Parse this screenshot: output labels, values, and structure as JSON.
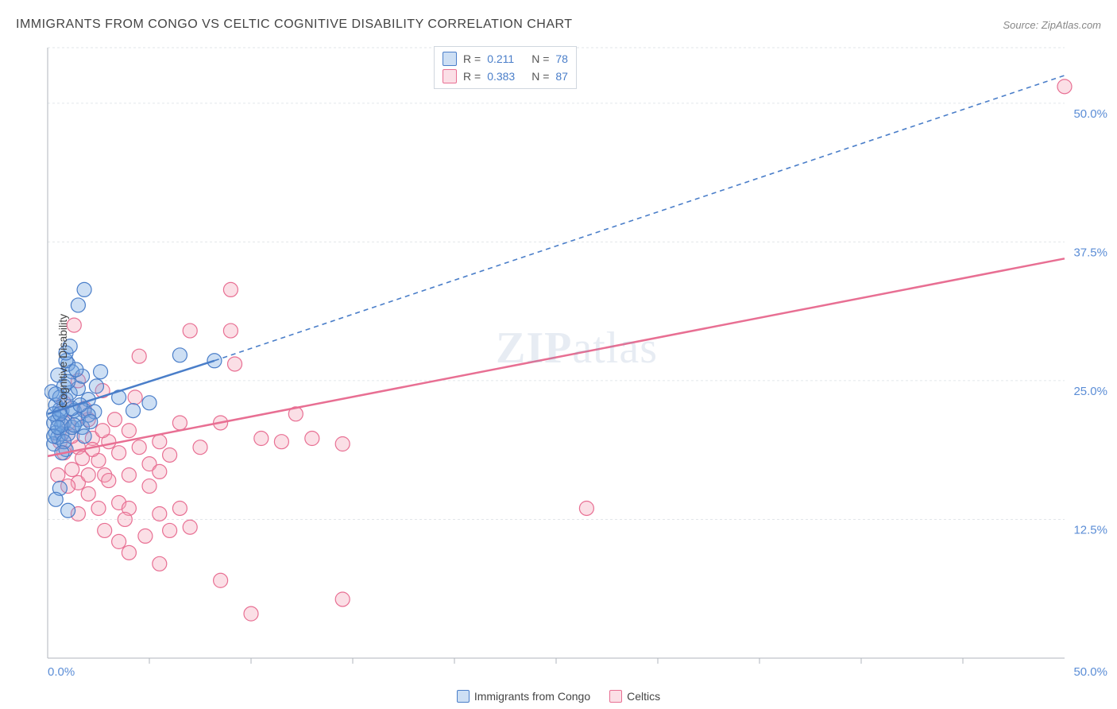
{
  "title": "IMMIGRANTS FROM CONGO VS CELTIC COGNITIVE DISABILITY CORRELATION CHART",
  "source": "Source: ZipAtlas.com",
  "ylabel": "Cognitive Disability",
  "watermark_a": "ZIP",
  "watermark_b": "atlas",
  "legend": {
    "series_a_label": "Immigrants from Congo",
    "series_b_label": "Celtics"
  },
  "stats": {
    "series_a": {
      "r_label": "R =",
      "r": "0.211",
      "n_label": "N =",
      "n": "78"
    },
    "series_b": {
      "r_label": "R =",
      "r": "0.383",
      "n_label": "N =",
      "n": "87"
    }
  },
  "chart": {
    "type": "scatter",
    "xlim": [
      0,
      50
    ],
    "ylim": [
      0,
      55
    ],
    "x_tick_major": [
      0,
      50
    ],
    "x_tick_minor": [
      5,
      10,
      15,
      20,
      25,
      30,
      35,
      40,
      45
    ],
    "y_gridlines": [
      12.5,
      25.0,
      37.5,
      50.0,
      55.0
    ],
    "y_tick_labels": [
      "12.5%",
      "25.0%",
      "37.5%",
      "50.0%"
    ],
    "x_tick_labels": [
      "0.0%",
      "50.0%"
    ],
    "background_color": "#ffffff",
    "grid_color": "#e2e6ea",
    "axis_color": "#b0b6bc",
    "marker_radius": 9,
    "marker_opacity": 0.45,
    "series_a": {
      "color": "#6fa3e0",
      "stroke": "#4a7ec9",
      "fill": "rgba(111,163,224,0.35)",
      "trend": {
        "x1": 0,
        "y1": 22.0,
        "x2": 8.2,
        "y2": 26.8,
        "solid": true,
        "dash_x2": 50,
        "dash_y2": 52.5
      },
      "points": [
        [
          1.8,
          33.2
        ],
        [
          1.5,
          31.8
        ],
        [
          1.0,
          26.5
        ],
        [
          1.2,
          25.8
        ],
        [
          0.7,
          22.3
        ],
        [
          0.5,
          21.5
        ],
        [
          0.6,
          22.4
        ],
        [
          0.9,
          23.3
        ],
        [
          0.4,
          20.3
        ],
        [
          0.3,
          21.2
        ],
        [
          0.8,
          21.2
        ],
        [
          1.1,
          23.9
        ],
        [
          1.3,
          22.3
        ],
        [
          1.5,
          24.3
        ],
        [
          1.7,
          25.4
        ],
        [
          2.4,
          24.5
        ],
        [
          2.6,
          25.8
        ],
        [
          2.0,
          23.3
        ],
        [
          1.8,
          22.3
        ],
        [
          2.3,
          22.2
        ],
        [
          0.3,
          19.3
        ],
        [
          0.5,
          19.9
        ],
        [
          0.7,
          20.2
        ],
        [
          0.9,
          18.8
        ],
        [
          1.0,
          20.2
        ],
        [
          1.2,
          20.8
        ],
        [
          1.5,
          21.5
        ],
        [
          2.0,
          21.9
        ],
        [
          0.6,
          15.3
        ],
        [
          0.4,
          14.3
        ],
        [
          1.0,
          13.3
        ],
        [
          3.5,
          23.5
        ],
        [
          4.2,
          22.3
        ],
        [
          5.0,
          23.0
        ],
        [
          6.5,
          27.3
        ],
        [
          8.2,
          26.8
        ],
        [
          0.8,
          24.5
        ],
        [
          1.0,
          24.9
        ],
        [
          0.5,
          25.5
        ],
        [
          0.9,
          26.8
        ],
        [
          0.2,
          24.0
        ],
        [
          0.4,
          22.8
        ],
        [
          0.6,
          23.5
        ],
        [
          0.3,
          22.0
        ],
        [
          0.7,
          21.0
        ],
        [
          1.2,
          22.5
        ],
        [
          0.3,
          20.0
        ],
        [
          1.7,
          20.8
        ],
        [
          0.9,
          27.5
        ],
        [
          1.1,
          28.1
        ],
        [
          1.4,
          26.0
        ],
        [
          0.4,
          23.8
        ],
        [
          0.6,
          22.0
        ],
        [
          0.5,
          20.8
        ],
        [
          1.3,
          21.0
        ],
        [
          1.6,
          22.8
        ],
        [
          0.8,
          19.5
        ],
        [
          0.7,
          18.5
        ],
        [
          2.1,
          21.3
        ],
        [
          1.8,
          20.0
        ]
      ]
    },
    "series_b": {
      "color": "#f4a3b8",
      "stroke": "#e86f93",
      "fill": "rgba(244,163,184,0.35)",
      "trend": {
        "x1": 0,
        "y1": 18.2,
        "x2": 50,
        "y2": 36.0,
        "solid": true
      },
      "points": [
        [
          50.0,
          51.5
        ],
        [
          26.5,
          13.5
        ],
        [
          14.5,
          5.3
        ],
        [
          10.0,
          4.0
        ],
        [
          8.5,
          7.0
        ],
        [
          9.0,
          33.2
        ],
        [
          9.2,
          26.5
        ],
        [
          10.5,
          19.8
        ],
        [
          1.3,
          30.0
        ],
        [
          4.5,
          27.2
        ],
        [
          7.0,
          29.5
        ],
        [
          9.0,
          29.5
        ],
        [
          4.3,
          23.5
        ],
        [
          6.5,
          21.2
        ],
        [
          8.5,
          21.2
        ],
        [
          11.5,
          19.5
        ],
        [
          13.0,
          19.8
        ],
        [
          12.2,
          22.0
        ],
        [
          14.5,
          19.3
        ],
        [
          2.7,
          24.1
        ],
        [
          1.0,
          21.2
        ],
        [
          1.5,
          19.0
        ],
        [
          2.2,
          19.8
        ],
        [
          2.0,
          21.5
        ],
        [
          2.5,
          17.8
        ],
        [
          3.5,
          18.5
        ],
        [
          3.0,
          19.5
        ],
        [
          4.5,
          19.0
        ],
        [
          6.0,
          18.3
        ],
        [
          5.0,
          17.5
        ],
        [
          1.7,
          18.0
        ],
        [
          2.8,
          16.5
        ],
        [
          0.8,
          18.5
        ],
        [
          1.2,
          17.0
        ],
        [
          1.5,
          15.8
        ],
        [
          2.0,
          16.5
        ],
        [
          3.0,
          16.0
        ],
        [
          4.0,
          16.5
        ],
        [
          5.0,
          15.5
        ],
        [
          5.5,
          16.8
        ],
        [
          1.0,
          15.5
        ],
        [
          2.0,
          14.8
        ],
        [
          3.5,
          14.0
        ],
        [
          4.0,
          13.5
        ],
        [
          1.5,
          13.0
        ],
        [
          2.5,
          13.5
        ],
        [
          3.8,
          12.5
        ],
        [
          5.5,
          13.0
        ],
        [
          6.5,
          13.5
        ],
        [
          2.8,
          11.5
        ],
        [
          3.5,
          10.5
        ],
        [
          4.8,
          11.0
        ],
        [
          6.0,
          11.5
        ],
        [
          7.0,
          11.8
        ],
        [
          4.0,
          9.5
        ],
        [
          5.5,
          8.5
        ],
        [
          4.0,
          20.5
        ],
        [
          5.5,
          19.5
        ],
        [
          7.5,
          19.0
        ],
        [
          0.5,
          16.5
        ],
        [
          1.2,
          20.0
        ],
        [
          2.7,
          20.5
        ],
        [
          3.3,
          21.5
        ],
        [
          1.8,
          22.5
        ],
        [
          0.8,
          23.0
        ],
        [
          2.2,
          18.8
        ],
        [
          1.5,
          25.0
        ],
        [
          0.6,
          19.5
        ]
      ]
    }
  }
}
